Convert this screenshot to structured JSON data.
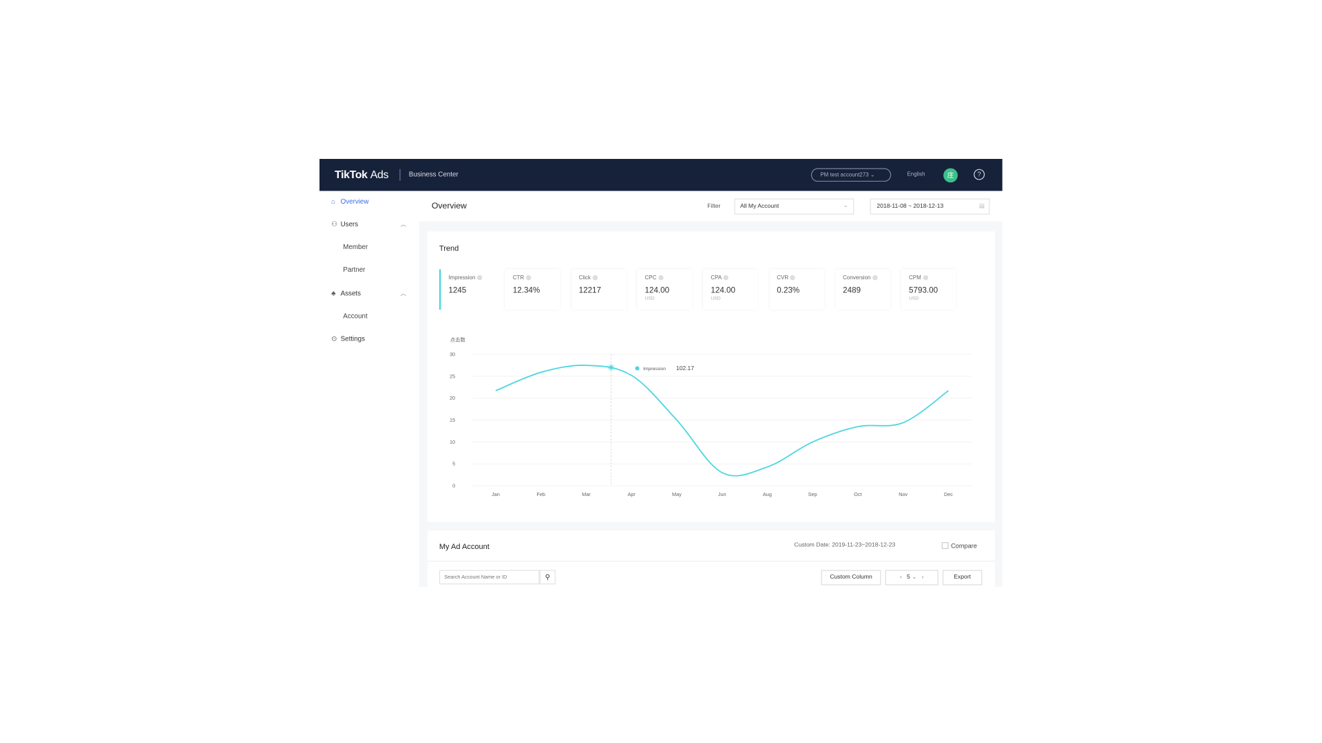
{
  "header": {
    "brand": "TikTok",
    "brand_suffix": "Ads",
    "product": "Business Center",
    "account": "PM test account273",
    "language": "English",
    "avatar_initial": "庄",
    "help": "?"
  },
  "sidebar": {
    "items": [
      {
        "label": "Overview",
        "icon": "home-icon",
        "active": true
      },
      {
        "label": "Users",
        "icon": "users-icon",
        "expanded": true,
        "children": [
          "Member",
          "Partner"
        ]
      },
      {
        "label": "Assets",
        "icon": "assets-icon",
        "expanded": true,
        "children": [
          "Account"
        ]
      },
      {
        "label": "Settings",
        "icon": "settings-icon"
      }
    ]
  },
  "page": {
    "title": "Overview",
    "filter_label": "Filter",
    "filter_value": "All My Account",
    "date_start": "2018-11-08",
    "date_sep": "~",
    "date_end": "2018-12-13"
  },
  "trend": {
    "title": "Trend",
    "metrics": [
      {
        "label": "Impression",
        "value": "1245",
        "unit": ""
      },
      {
        "label": "CTR",
        "value": "12.34%",
        "unit": ""
      },
      {
        "label": "Click",
        "value": "12217",
        "unit": ""
      },
      {
        "label": "CPC",
        "value": "124.00",
        "unit": "USD"
      },
      {
        "label": "CPA",
        "value": "124.00",
        "unit": "USD"
      },
      {
        "label": "CVR",
        "value": "0.23%",
        "unit": ""
      },
      {
        "label": "Conversion",
        "value": "2489",
        "unit": ""
      },
      {
        "label": "CPM",
        "value": "5793.00",
        "unit": "USD"
      }
    ]
  },
  "chart_data": {
    "type": "line",
    "ylabel": "点击数",
    "categories": [
      "Jan",
      "Feb",
      "Mar",
      "Apr",
      "May",
      "Jun",
      "Aug",
      "Sep",
      "Oct",
      "Nov",
      "Dec"
    ],
    "series": [
      {
        "name": "Impression",
        "values": [
          21.7,
          25.9,
          27.5,
          25.2,
          15,
          3,
          4.3,
          10,
          13.5,
          14.4,
          21.7
        ]
      }
    ],
    "ylim": [
      0,
      30
    ],
    "yticks": [
      0,
      5,
      10,
      15,
      20,
      25,
      30
    ],
    "grid": true,
    "color": "#4fd6e0",
    "tooltip": {
      "label": "Impression",
      "value": "102.17"
    }
  },
  "ad_account": {
    "title": "My Ad Account",
    "custom_date_label": "Custom Date:",
    "custom_date": "2019-11-23~2018-12-23",
    "compare_label": "Compare",
    "search_placeholder": "Search Account Name or ID",
    "custom_column": "Custom Column",
    "page_size": "5",
    "export": "Export",
    "prev": "‹",
    "next": "›"
  }
}
